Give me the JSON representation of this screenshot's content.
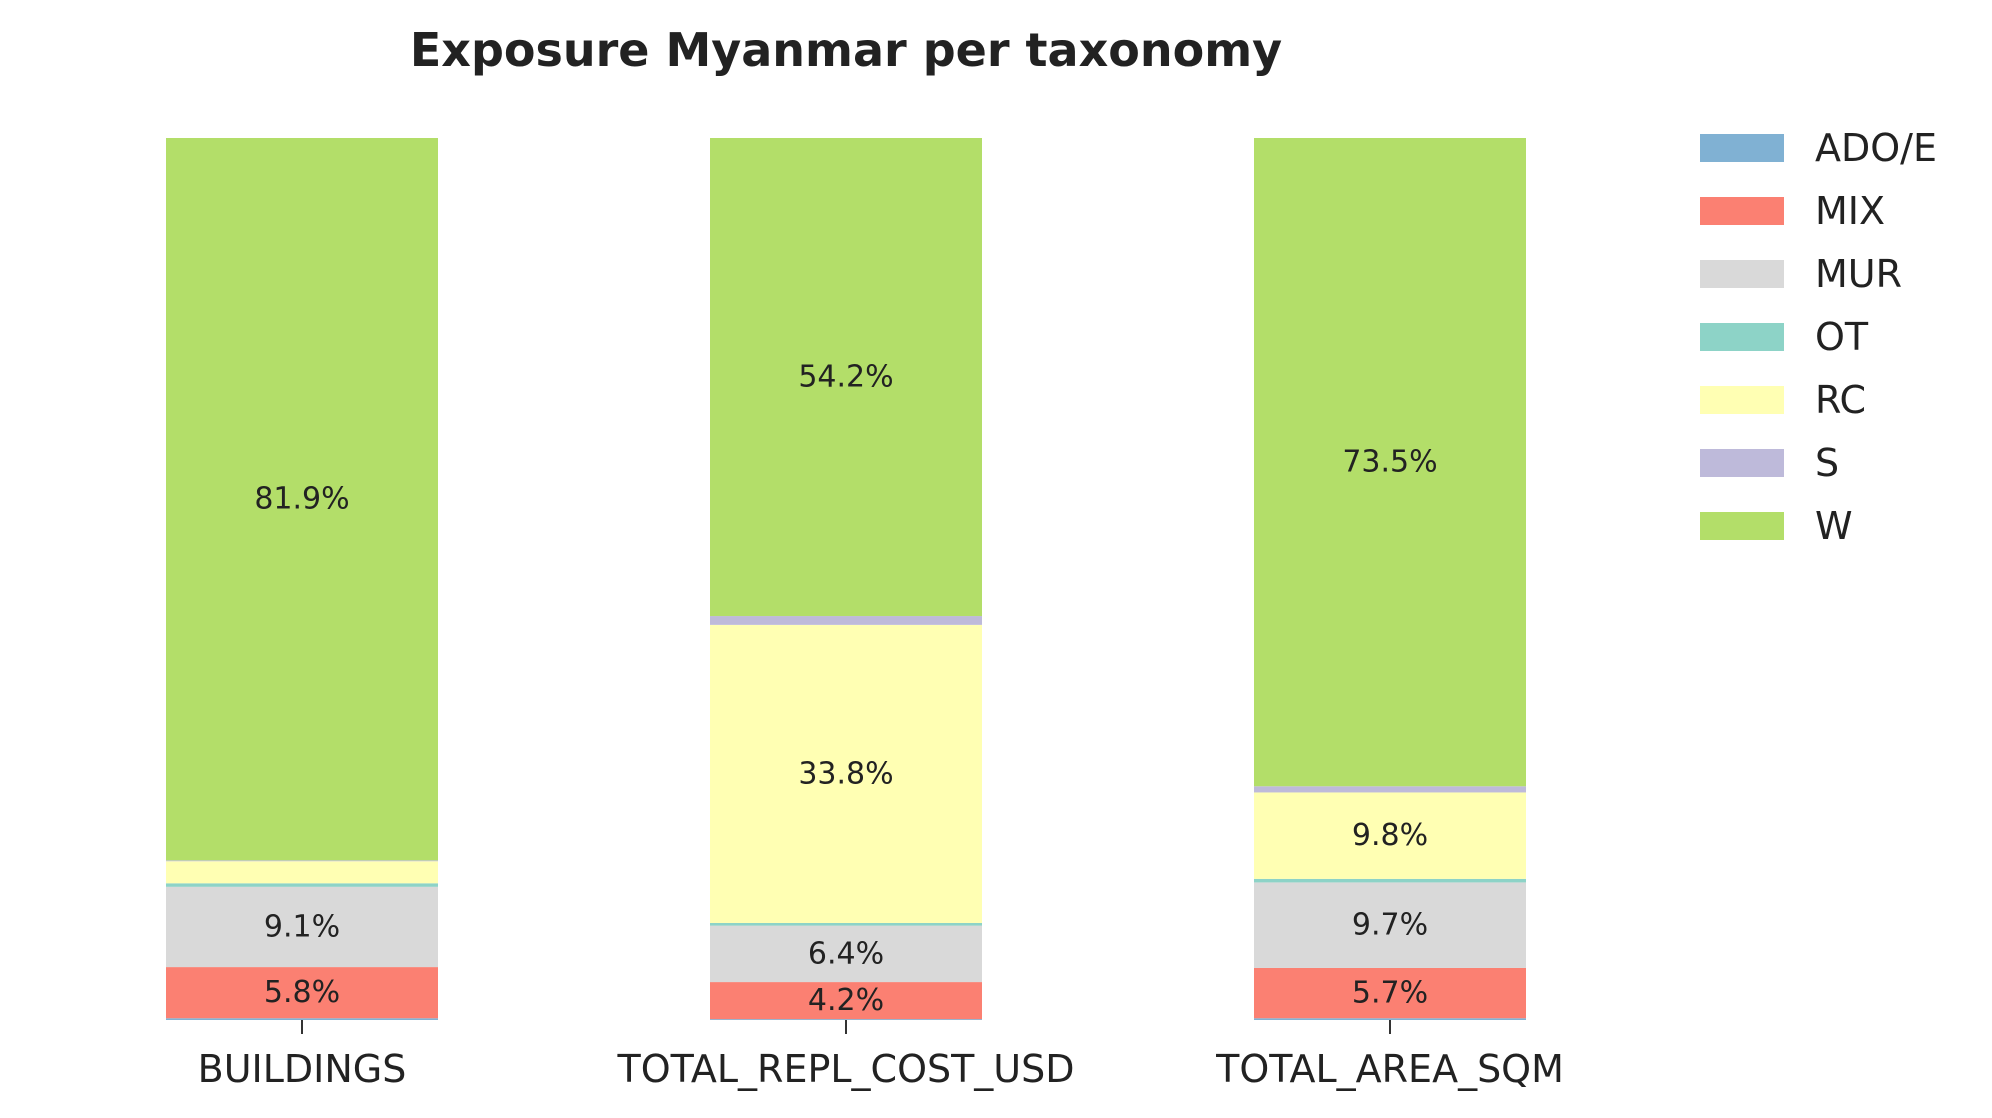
{
  "chart_data": {
    "type": "bar",
    "stacked": true,
    "normalized_percent": true,
    "title": "Exposure Myanmar per taxonomy",
    "xlabel": "",
    "ylabel": "",
    "ylim": [
      0,
      100
    ],
    "grid": false,
    "legend_position": "top-right outside",
    "categories": [
      "BUILDINGS",
      "TOTAL_REPL_COST_USD",
      "TOTAL_AREA_SQM"
    ],
    "series": [
      {
        "name": "ADO/E",
        "color": "#80b1d3",
        "values": [
          0.2,
          0.1,
          0.2
        ]
      },
      {
        "name": "MIX",
        "color": "#fb8072",
        "values": [
          5.8,
          4.2,
          5.7
        ]
      },
      {
        "name": "MUR",
        "color": "#d9d9d9",
        "values": [
          9.1,
          6.4,
          9.7
        ]
      },
      {
        "name": "OT",
        "color": "#8dd3c7",
        "values": [
          0.4,
          0.3,
          0.4
        ]
      },
      {
        "name": "RC",
        "color": "#ffffb3",
        "values": [
          2.5,
          33.8,
          9.8
        ]
      },
      {
        "name": "S",
        "color": "#bebada",
        "values": [
          0.1,
          1.0,
          0.7
        ]
      },
      {
        "name": "W",
        "color": "#b3de69",
        "values": [
          81.9,
          54.2,
          73.5
        ]
      }
    ],
    "data_labels": [
      {
        "category": "BUILDINGS",
        "series": "MIX",
        "text": "5.8%"
      },
      {
        "category": "BUILDINGS",
        "series": "MUR",
        "text": "9.1%"
      },
      {
        "category": "BUILDINGS",
        "series": "W",
        "text": "81.9%"
      },
      {
        "category": "TOTAL_REPL_COST_USD",
        "series": "MIX",
        "text": "4.2%"
      },
      {
        "category": "TOTAL_REPL_COST_USD",
        "series": "MUR",
        "text": "6.4%"
      },
      {
        "category": "TOTAL_REPL_COST_USD",
        "series": "RC",
        "text": "33.8%"
      },
      {
        "category": "TOTAL_REPL_COST_USD",
        "series": "W",
        "text": "54.2%"
      },
      {
        "category": "TOTAL_AREA_SQM",
        "series": "MIX",
        "text": "5.7%"
      },
      {
        "category": "TOTAL_AREA_SQM",
        "series": "MUR",
        "text": "9.7%"
      },
      {
        "category": "TOTAL_AREA_SQM",
        "series": "RC",
        "text": "9.8%"
      },
      {
        "category": "TOTAL_AREA_SQM",
        "series": "W",
        "text": "73.5%"
      }
    ]
  }
}
